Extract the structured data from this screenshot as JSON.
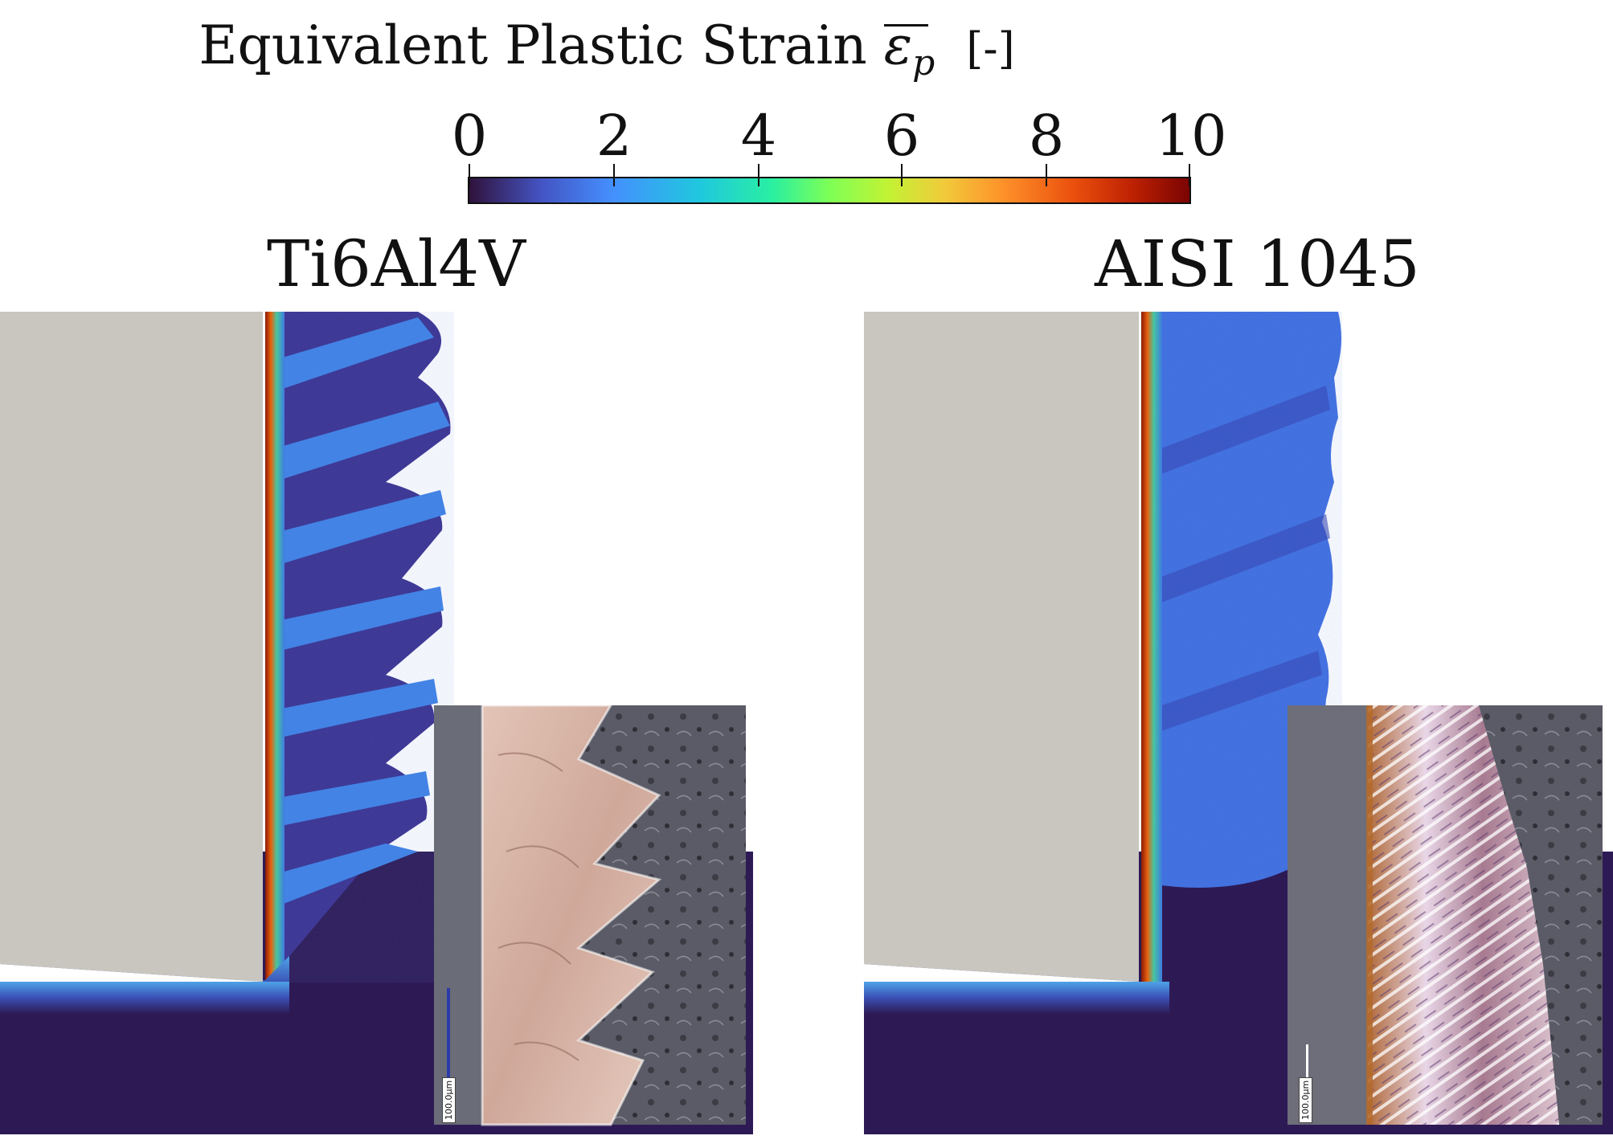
{
  "colorbar": {
    "title": "Equivalent Plastic Strain",
    "symbol": "ε",
    "subscript": "p",
    "unit": "[-]",
    "ticks": [
      "0",
      "2",
      "4",
      "6",
      "8",
      "10"
    ],
    "colors": [
      "#30123b",
      "#4454c4",
      "#4490fe",
      "#1fc8de",
      "#29efa2",
      "#7dff56",
      "#c1f334",
      "#f1ca3a",
      "#fe922a",
      "#ea4f0d",
      "#be2102",
      "#7a0403"
    ]
  },
  "panels": [
    {
      "title": "Ti6Al4V",
      "scale_bar": "100.0μm"
    },
    {
      "title": "AISI 1045",
      "scale_bar": "100.0μm"
    }
  ],
  "colors": {
    "tool": "#c8c6bf",
    "workpiece": "#2d1a55",
    "low_strain": "#3d3b9e",
    "band": "#3f7be0",
    "edge_hot": "#d93a12"
  }
}
